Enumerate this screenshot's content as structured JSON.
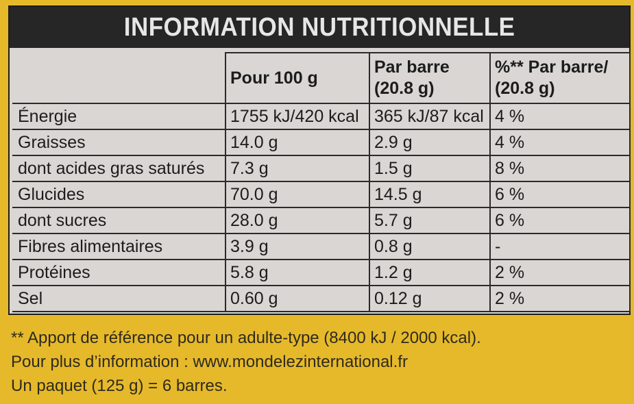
{
  "title": "INFORMATION NUTRITIONNELLE",
  "columns": [
    "",
    "Pour 100 g",
    "Par barre\n(20.8 g)",
    "%** Par barre/\n(20.8 g)"
  ],
  "rows": [
    {
      "name": "Énergie",
      "per100": "1755 kJ/420 kcal",
      "perBar": "365 kJ/87 kcal",
      "pct": "4 %"
    },
    {
      "name": "Graisses",
      "per100": "14.0 g",
      "perBar": "2.9 g",
      "pct": "4 %"
    },
    {
      "name": "dont acides gras saturés",
      "per100": "7.3 g",
      "perBar": "1.5 g",
      "pct": "8 %"
    },
    {
      "name": "Glucides",
      "per100": "70.0 g",
      "perBar": "14.5 g",
      "pct": "6 %"
    },
    {
      "name": "dont sucres",
      "per100": "28.0 g",
      "perBar": "5.7 g",
      "pct": "6 %"
    },
    {
      "name": "Fibres alimentaires",
      "per100": "3.9 g",
      "perBar": "0.8 g",
      "pct": "-"
    },
    {
      "name": "Protéines",
      "per100": "5.8 g",
      "perBar": "1.2 g",
      "pct": "2 %"
    },
    {
      "name": "Sel",
      "per100": "0.60 g",
      "perBar": "0.12 g",
      "pct": "2 %"
    }
  ],
  "footer": [
    "** Apport de référence pour un adulte-type (8400 kJ / 2000 kcal).",
    "Pour plus d’information : www.mondelezinternational.fr",
    "Un paquet (125 g) = 6 barres."
  ],
  "colors": {
    "background": "#e6b92a",
    "panel": "#d9d6d3",
    "titleBar": "#262626",
    "text": "#1c1c1c"
  }
}
